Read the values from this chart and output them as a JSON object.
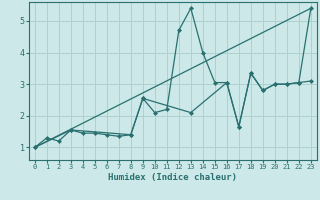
{
  "xlabel": "Humidex (Indice chaleur)",
  "bg_color": "#cce8e8",
  "grid_color": "#b0d0d0",
  "line_color": "#2a7070",
  "xlim": [
    -0.5,
    23.5
  ],
  "ylim": [
    0.6,
    5.6
  ],
  "yticks": [
    1,
    2,
    3,
    4,
    5
  ],
  "xticks": [
    0,
    1,
    2,
    3,
    4,
    5,
    6,
    7,
    8,
    9,
    10,
    11,
    12,
    13,
    14,
    15,
    16,
    17,
    18,
    19,
    20,
    21,
    22,
    23
  ],
  "series": [
    {
      "x": [
        0,
        1,
        2,
        3,
        4,
        5,
        6,
        7,
        8,
        9,
        10,
        11,
        12,
        13,
        14,
        15,
        16,
        17,
        18,
        19,
        20,
        21,
        22,
        23
      ],
      "y": [
        1.0,
        1.3,
        1.2,
        1.55,
        1.45,
        1.45,
        1.4,
        1.35,
        1.4,
        2.55,
        2.1,
        2.2,
        4.7,
        5.4,
        4.0,
        3.05,
        3.05,
        1.65,
        3.35,
        2.8,
        3.0,
        3.0,
        3.05,
        5.4
      ],
      "marker": true
    },
    {
      "x": [
        0,
        23
      ],
      "y": [
        1.0,
        5.4
      ],
      "marker": false
    },
    {
      "x": [
        0,
        3,
        8,
        9,
        13,
        16,
        17,
        18,
        19,
        20,
        21,
        22,
        23
      ],
      "y": [
        1.0,
        1.55,
        1.4,
        2.55,
        2.1,
        3.05,
        1.65,
        3.35,
        2.8,
        3.0,
        3.0,
        3.05,
        3.1
      ],
      "marker": true
    }
  ]
}
